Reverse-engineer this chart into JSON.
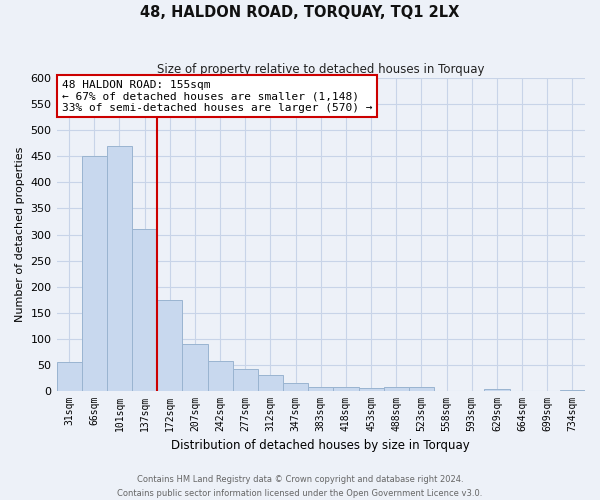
{
  "title": "48, HALDON ROAD, TORQUAY, TQ1 2LX",
  "subtitle": "Size of property relative to detached houses in Torquay",
  "xlabel": "Distribution of detached houses by size in Torquay",
  "ylabel": "Number of detached properties",
  "bar_labels": [
    "31sqm",
    "66sqm",
    "101sqm",
    "137sqm",
    "172sqm",
    "207sqm",
    "242sqm",
    "277sqm",
    "312sqm",
    "347sqm",
    "383sqm",
    "418sqm",
    "453sqm",
    "488sqm",
    "523sqm",
    "558sqm",
    "593sqm",
    "629sqm",
    "664sqm",
    "699sqm",
    "734sqm"
  ],
  "bar_values": [
    55,
    450,
    470,
    310,
    175,
    90,
    58,
    42,
    30,
    15,
    7,
    8,
    5,
    7,
    8,
    0,
    0,
    3,
    0,
    0,
    2
  ],
  "bar_color": "#c8d8ee",
  "bar_edge_color": "#9ab4d0",
  "vline_x_index": 3,
  "vline_color": "#cc0000",
  "annotation_line1": "48 HALDON ROAD: 155sqm",
  "annotation_line2": "← 67% of detached houses are smaller (1,148)",
  "annotation_line3": "33% of semi-detached houses are larger (570) →",
  "annotation_box_color": "#ffffff",
  "annotation_box_edge": "#cc0000",
  "ylim": [
    0,
    600
  ],
  "yticks": [
    0,
    50,
    100,
    150,
    200,
    250,
    300,
    350,
    400,
    450,
    500,
    550,
    600
  ],
  "grid_color": "#c8d4e8",
  "bg_color": "#edf1f8",
  "footer_line1": "Contains HM Land Registry data © Crown copyright and database right 2024.",
  "footer_line2": "Contains public sector information licensed under the Open Government Licence v3.0."
}
